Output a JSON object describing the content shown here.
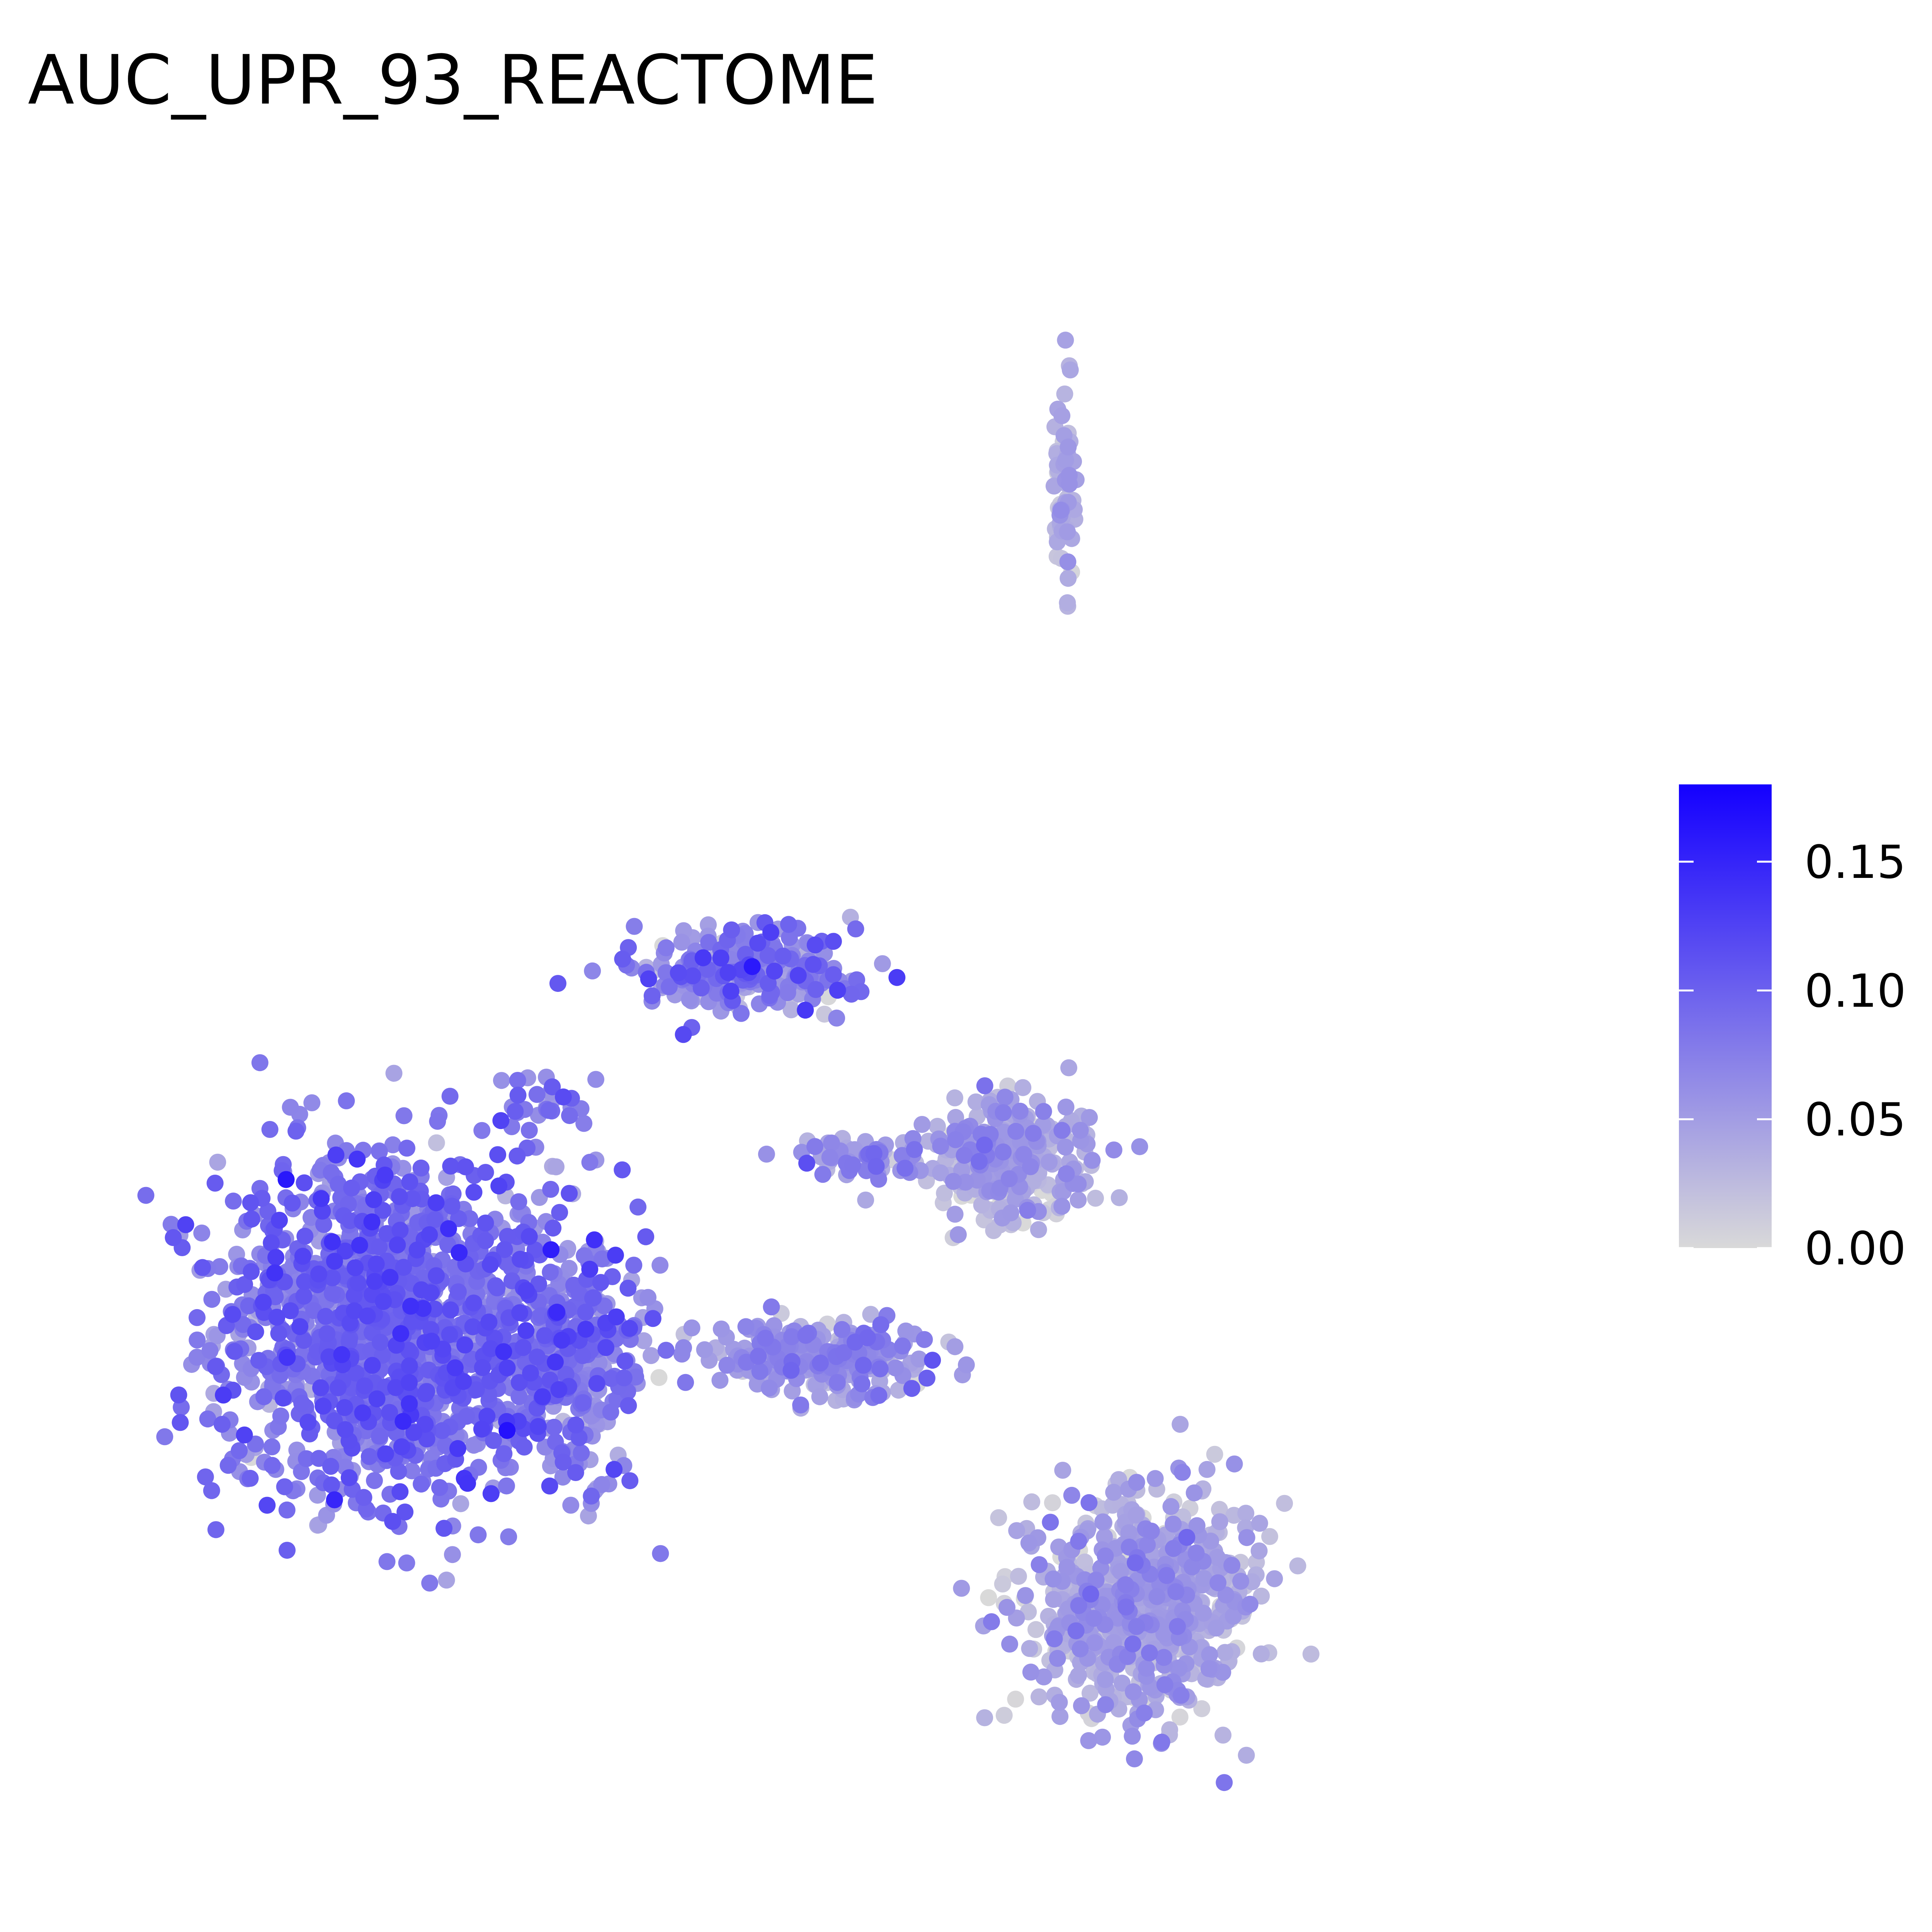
{
  "chart_data": {
    "type": "scatter",
    "title": "AUC_UPR_93_REACTOME",
    "xlabel": "",
    "ylabel": "",
    "grid": false,
    "axes_visible": false,
    "legend_position": "right",
    "color_scale": {
      "low_color": "#d9d9d9",
      "high_color": "#1400ff",
      "min": 0,
      "max": 0.18,
      "ticks": [
        {
          "value": 0.0,
          "label": "0.00"
        },
        {
          "value": 0.05,
          "label": "0.05"
        },
        {
          "value": 0.1,
          "label": "0.10"
        },
        {
          "value": 0.15,
          "label": "0.15"
        }
      ]
    },
    "xlim": [
      0,
      100
    ],
    "ylim": [
      0,
      100
    ],
    "clusters": [
      {
        "id": "left-large",
        "center": [
          20,
          32
        ],
        "spread": [
          10.5,
          9.5
        ],
        "count": 1400,
        "mean_value": 0.085,
        "sd": 0.022
      },
      {
        "id": "left-right-lobe",
        "center": [
          33,
          30
        ],
        "spread": [
          4.5,
          7
        ],
        "count": 350,
        "mean_value": 0.075,
        "sd": 0.025
      },
      {
        "id": "top-arc",
        "center": [
          45,
          53
        ],
        "spread": [
          7,
          2.2
        ],
        "count": 260,
        "mean_value": 0.07,
        "sd": 0.03
      },
      {
        "id": "bridge-upper",
        "center": [
          31,
          45
        ],
        "spread": [
          3.5,
          2.5
        ],
        "count": 30,
        "mean_value": 0.075,
        "sd": 0.02
      },
      {
        "id": "middle-bridge",
        "center": [
          50,
          30
        ],
        "spread": [
          7,
          1.8
        ],
        "count": 280,
        "mean_value": 0.055,
        "sd": 0.02
      },
      {
        "id": "right-middle",
        "center": [
          63,
          42
        ],
        "spread": [
          5,
          3.2
        ],
        "count": 340,
        "mean_value": 0.035,
        "sd": 0.02
      },
      {
        "id": "right-middle-tail",
        "center": [
          53,
          42
        ],
        "spread": [
          4,
          1.2
        ],
        "count": 60,
        "mean_value": 0.06,
        "sd": 0.02
      },
      {
        "id": "bottom-right",
        "center": [
          72,
          15
        ],
        "spread": [
          7,
          6
        ],
        "count": 750,
        "mean_value": 0.04,
        "sd": 0.02
      },
      {
        "id": "top-small",
        "center": [
          66.8,
          83
        ],
        "spread": [
          0.6,
          5
        ],
        "count": 70,
        "mean_value": 0.035,
        "sd": 0.015
      }
    ]
  }
}
